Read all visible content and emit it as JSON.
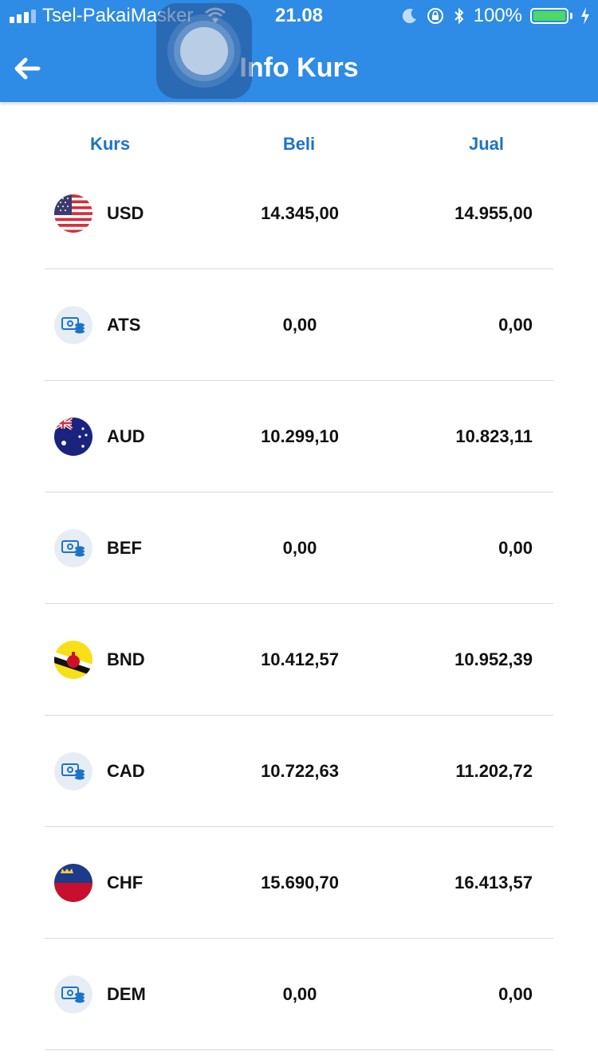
{
  "status_bar": {
    "carrier": "Tsel-PakaiMasker",
    "time": "21.08",
    "battery": "100%"
  },
  "header": {
    "title": "Info Kurs",
    "back_icon": "arrow-left-icon",
    "color": "#2e8be6"
  },
  "table": {
    "columns": [
      "Kurs",
      "Beli",
      "Jual"
    ],
    "rows": [
      {
        "code": "USD",
        "beli": "14.345,00",
        "jual": "14.955,00",
        "icon": "flag-usa-icon"
      },
      {
        "code": "ATS",
        "beli": "0,00",
        "jual": "0,00",
        "icon": "money-icon"
      },
      {
        "code": "AUD",
        "beli": "10.299,10",
        "jual": "10.823,11",
        "icon": "flag-australia-icon"
      },
      {
        "code": "BEF",
        "beli": "0,00",
        "jual": "0,00",
        "icon": "money-icon"
      },
      {
        "code": "BND",
        "beli": "10.412,57",
        "jual": "10.952,39",
        "icon": "flag-brunei-icon"
      },
      {
        "code": "CAD",
        "beli": "10.722,63",
        "jual": "11.202,72",
        "icon": "money-icon"
      },
      {
        "code": "CHF",
        "beli": "15.690,70",
        "jual": "16.413,57",
        "icon": "flag-liechtenstein-icon"
      },
      {
        "code": "DEM",
        "beli": "0,00",
        "jual": "0,00",
        "icon": "money-icon"
      }
    ],
    "header_color": "#1e73c7"
  }
}
